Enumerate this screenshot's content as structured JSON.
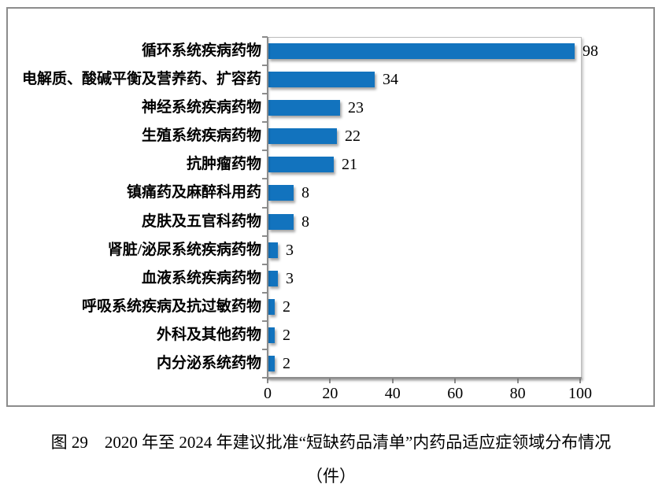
{
  "chart_data": {
    "type": "bar",
    "orientation": "horizontal",
    "title": "图 29　2020 年至 2024 年建议批准“短缺药品清单”内药品适应症领域分布情况",
    "unit_label": "（件）",
    "categories": [
      "循环系统疾病药物",
      "电解质、酸碱平衡及营养药、扩容药",
      "神经系统疾病药物",
      "生殖系统疾病药物",
      "抗肿瘤药物",
      "镇痛药及麻醉科用药",
      "皮肤及五官科药物",
      "肾脏/泌尿系统疾病药物",
      "血液系统疾病药物",
      "呼吸系统疾病及抗过敏药物",
      "外科及其他药物",
      "内分泌系统药物"
    ],
    "values": [
      98,
      34,
      23,
      22,
      21,
      8,
      8,
      3,
      3,
      2,
      2,
      2
    ],
    "xlim": [
      0,
      100
    ],
    "x_ticks": [
      0,
      20,
      40,
      60,
      80,
      100
    ],
    "bar_color": "#1273BE",
    "data_labels": true,
    "grid": false,
    "legend": "none"
  }
}
